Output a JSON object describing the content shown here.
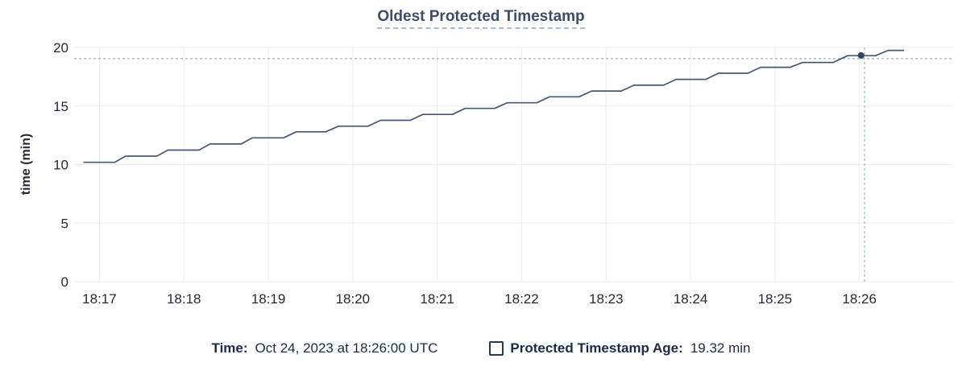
{
  "header": {
    "title": "Oldest Protected Timestamp"
  },
  "colors": {
    "line": "#475872",
    "dot": "#34415c",
    "crosshair": "#a3b4c2",
    "grid": "#ededed",
    "title": "#3e4d66",
    "title_underline": "#a9bad1",
    "axis_text": "#242a35",
    "legend_text": "#1c2b4a"
  },
  "chart_data": {
    "type": "line",
    "title": "Oldest Protected Timestamp",
    "xlabel": "",
    "ylabel": "time (min)",
    "grid": true,
    "legend_position": "bottom",
    "x_axis": {
      "lim": [
        16.7,
        27.11
      ],
      "ticks": [
        17,
        18,
        19,
        20,
        21,
        22,
        23,
        24,
        25,
        26
      ],
      "labels": [
        "18:17",
        "18:18",
        "18:19",
        "18:20",
        "18:21",
        "18:22",
        "18:23",
        "18:24",
        "18:25",
        "18:26"
      ]
    },
    "y_axis": {
      "lim": [
        0,
        20
      ],
      "ticks": [
        0,
        5,
        10,
        15,
        20
      ],
      "labels": [
        "0",
        "5",
        "10",
        "15",
        "20"
      ]
    },
    "series": [
      {
        "name": "Protected Timestamp Age",
        "points": [
          [
            16.81,
            10.19
          ],
          [
            17.18,
            10.19
          ],
          [
            17.31,
            10.72
          ],
          [
            17.68,
            10.72
          ],
          [
            17.81,
            11.24
          ],
          [
            18.18,
            11.24
          ],
          [
            18.31,
            11.76
          ],
          [
            18.68,
            11.76
          ],
          [
            18.81,
            12.28
          ],
          [
            19.18,
            12.28
          ],
          [
            19.33,
            12.8
          ],
          [
            19.68,
            12.8
          ],
          [
            19.83,
            13.28
          ],
          [
            20.18,
            13.28
          ],
          [
            20.33,
            13.78
          ],
          [
            20.68,
            13.78
          ],
          [
            20.83,
            14.28
          ],
          [
            21.18,
            14.28
          ],
          [
            21.33,
            14.8
          ],
          [
            21.68,
            14.8
          ],
          [
            21.83,
            15.28
          ],
          [
            22.18,
            15.28
          ],
          [
            22.33,
            15.79
          ],
          [
            22.68,
            15.79
          ],
          [
            22.83,
            16.28
          ],
          [
            23.18,
            16.28
          ],
          [
            23.33,
            16.78
          ],
          [
            23.68,
            16.78
          ],
          [
            23.83,
            17.28
          ],
          [
            24.18,
            17.28
          ],
          [
            24.33,
            17.8
          ],
          [
            24.68,
            17.8
          ],
          [
            24.83,
            18.31
          ],
          [
            25.18,
            18.31
          ],
          [
            25.33,
            18.72
          ],
          [
            25.69,
            18.72
          ],
          [
            25.86,
            19.3
          ],
          [
            26.19,
            19.3
          ],
          [
            26.34,
            19.75
          ],
          [
            26.53,
            19.75
          ]
        ]
      }
    ],
    "hover": {
      "dot_x": 26.02,
      "dot_y": 19.32,
      "vline_x": 26.06,
      "hline_y": 19.05
    }
  },
  "legend": {
    "time_label": "Time:",
    "time_value": "Oct 24, 2023 at 18:26:00 UTC",
    "series_label": "Protected Timestamp Age:",
    "series_value": "19.32 min"
  }
}
